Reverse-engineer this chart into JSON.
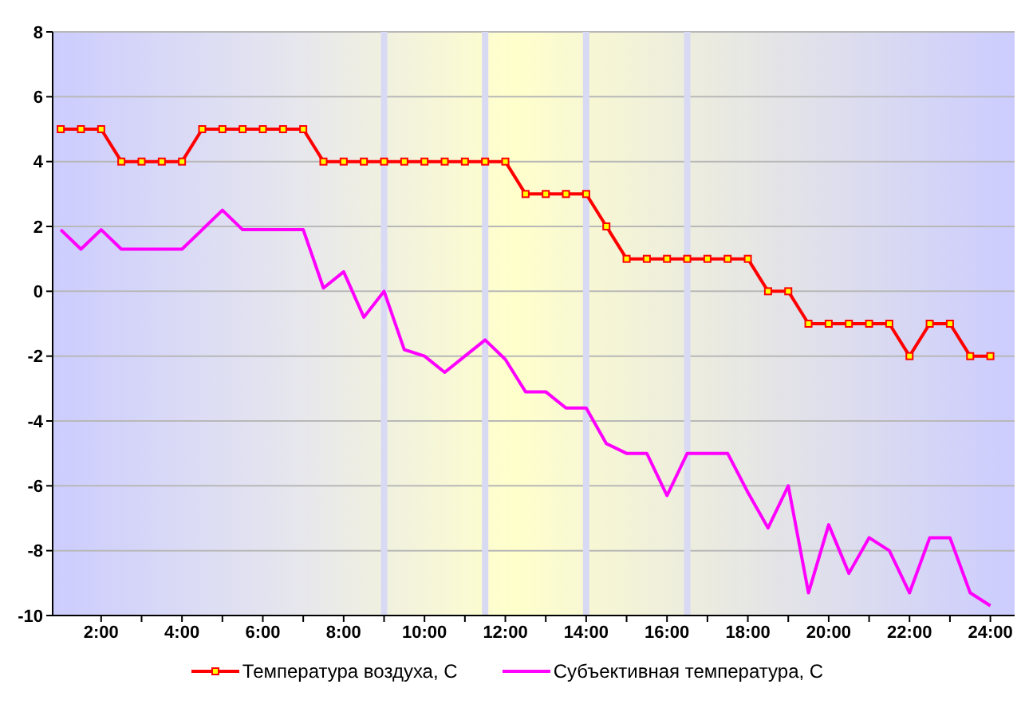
{
  "chart_data": {
    "type": "line",
    "x": [
      1,
      1.5,
      2,
      2.5,
      3,
      3.5,
      4,
      4.5,
      5,
      5.5,
      6,
      6.5,
      7,
      7.5,
      8,
      8.5,
      9,
      9.5,
      10,
      10.5,
      11,
      11.5,
      12,
      12.5,
      13,
      13.5,
      14,
      14.5,
      15,
      15.5,
      16,
      16.5,
      17,
      17.5,
      18,
      18.5,
      19,
      19.5,
      20,
      20.5,
      21,
      21.5,
      22,
      22.5,
      23,
      23.5,
      24
    ],
    "series": [
      {
        "name": "Температура воздуха, С",
        "color": "#ff0000",
        "marker": "square",
        "values": [
          5,
          5,
          5,
          4,
          4,
          4,
          4,
          5,
          5,
          5,
          5,
          5,
          5,
          4,
          4,
          4,
          4,
          4,
          4,
          4,
          4,
          4,
          4,
          3,
          3,
          3,
          3,
          2,
          1,
          1,
          1,
          1,
          1,
          1,
          1,
          0,
          0,
          -1,
          -1,
          -1,
          -1,
          -1,
          -2,
          -1,
          -1,
          -2,
          -2
        ]
      },
      {
        "name": "Субъективная температура, С",
        "color": "#ff00ff",
        "marker": "none",
        "values": [
          1.9,
          1.3,
          1.9,
          1.3,
          1.3,
          1.3,
          1.3,
          1.9,
          2.5,
          1.9,
          1.9,
          1.9,
          1.9,
          0.1,
          0.6,
          -0.8,
          0,
          -1.8,
          -2,
          -2.5,
          -2,
          -1.5,
          -2.1,
          -3.1,
          -3.1,
          -3.6,
          -3.6,
          -4.7,
          -5,
          -5,
          -6.3,
          -5,
          -5,
          -5,
          -6.2,
          -7.3,
          -6,
          -9.3,
          -7.2,
          -8.7,
          -7.6,
          -8,
          -9.3,
          -7.6,
          -7.6,
          -9.3,
          -9.7
        ]
      }
    ],
    "xlim": [
      0.8,
      24.6
    ],
    "xticks": [
      {
        "value": 2,
        "label": "2:00"
      },
      {
        "value": 3,
        "label": null
      },
      {
        "value": 4,
        "label": "4:00"
      },
      {
        "value": 5,
        "label": null
      },
      {
        "value": 6,
        "label": "6:00"
      },
      {
        "value": 7,
        "label": null
      },
      {
        "value": 8,
        "label": "8:00"
      },
      {
        "value": 9,
        "label": null
      },
      {
        "value": 10,
        "label": "10:00"
      },
      {
        "value": 11,
        "label": null
      },
      {
        "value": 12,
        "label": "12:00"
      },
      {
        "value": 13,
        "label": null
      },
      {
        "value": 14,
        "label": "14:00"
      },
      {
        "value": 15,
        "label": null
      },
      {
        "value": 16,
        "label": "16:00"
      },
      {
        "value": 17,
        "label": null
      },
      {
        "value": 18,
        "label": "18:00"
      },
      {
        "value": 19,
        "label": null
      },
      {
        "value": 20,
        "label": "20:00"
      },
      {
        "value": 21,
        "label": null
      },
      {
        "value": 22,
        "label": "22:00"
      },
      {
        "value": 23,
        "label": null
      },
      {
        "value": 24,
        "label": "24:00"
      }
    ],
    "ylim": [
      -10,
      8
    ],
    "yticks": [
      -10,
      -8,
      -6,
      -4,
      -2,
      0,
      2,
      4,
      6,
      8
    ],
    "ref_lines": [
      {
        "axis": "x",
        "value": 9,
        "color": "#d8daf4"
      },
      {
        "axis": "x",
        "value": 11.5,
        "color": "#d8daf4"
      },
      {
        "axis": "x",
        "value": 14,
        "color": "#d8daf4"
      },
      {
        "axis": "x",
        "value": 16.5,
        "color": "#d8daf4"
      }
    ],
    "grid": "y",
    "legend": "bottom"
  }
}
